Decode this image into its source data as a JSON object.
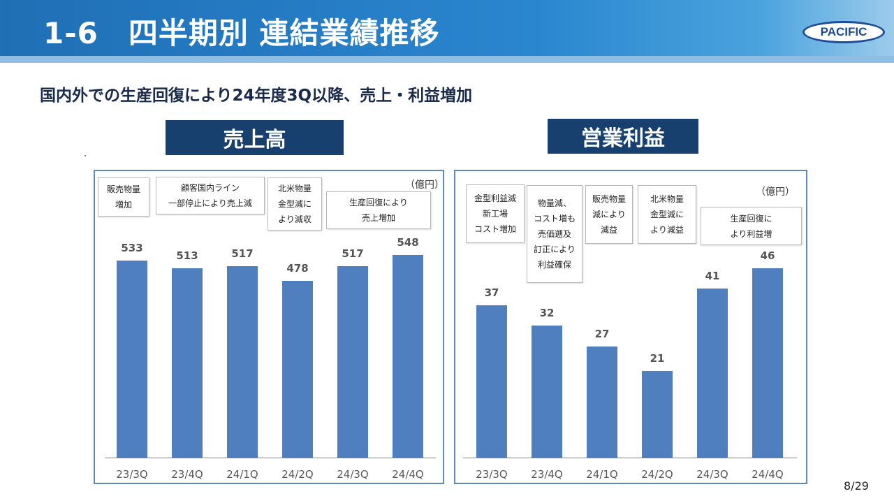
{
  "header": {
    "title": "1-6　四半期別 連結業績推移",
    "logo_text": "PACIFIC"
  },
  "subtitle": "国内外での生産回復により24年度3Q以降、売上・利益増加",
  "sales": {
    "label": "売上高",
    "unit": "（億円）",
    "notes": [
      [
        "販売物量",
        "増加"
      ],
      [
        "顧客国内ライン",
        "一部停止により売上減"
      ],
      [
        "北米物量",
        "金型減に",
        "より減収"
      ],
      [
        "生産回復により",
        "売上増加"
      ]
    ]
  },
  "operating_profit": {
    "label": "営業利益",
    "unit": "（億円）",
    "notes": [
      [
        "金型利益減",
        "新工場",
        "コスト増加"
      ],
      [
        "物量減、",
        "コスト増も",
        "売価遡及",
        "訂正により",
        "利益確保"
      ],
      [
        "販売物量",
        "減により",
        "減益"
      ],
      [
        "北米物量",
        "金型減に",
        "より減益"
      ],
      [
        "生産回復に",
        "より利益増"
      ]
    ]
  },
  "chart_data": [
    {
      "type": "bar",
      "title": "売上高",
      "ylabel": "（億円）",
      "categories": [
        "23/3Q",
        "23/4Q",
        "24/1Q",
        "24/2Q",
        "24/3Q",
        "24/4Q"
      ],
      "values": [
        533,
        513,
        517,
        478,
        517,
        548
      ],
      "ylim": [
        0,
        548
      ],
      "grid": false,
      "colors": {
        "bar": "#4f7fbe"
      }
    },
    {
      "type": "bar",
      "title": "営業利益",
      "ylabel": "（億円）",
      "categories": [
        "23/3Q",
        "23/4Q",
        "24/1Q",
        "24/2Q",
        "24/3Q",
        "24/4Q"
      ],
      "values": [
        37,
        32,
        27,
        21,
        41,
        46
      ],
      "ylim": [
        0,
        46
      ],
      "grid": false,
      "colors": {
        "bar": "#4f7fbe"
      }
    }
  ],
  "page_number": "8/29"
}
